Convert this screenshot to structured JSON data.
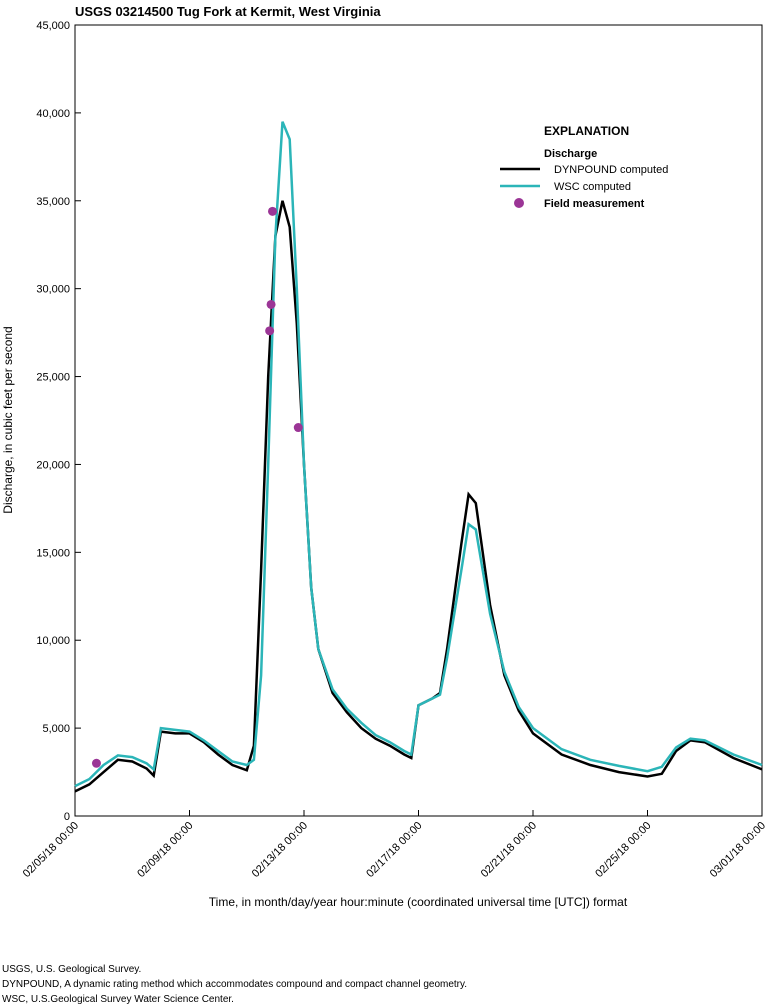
{
  "chart_data": {
    "type": "line",
    "title": "USGS 03214500 Tug Fork at Kermit, West Virginia",
    "y_label": "Discharge, in cubic feet per second",
    "x_label": "Time, in month/day/year hour:minute (coordinated universal time [UTC]) format",
    "legend_title": "EXPLANATION",
    "legend_subtitle": "Discharge",
    "legend_position": "upper right",
    "xlim": [
      "02/05/18 00:00",
      "03/01/18 00:00"
    ],
    "xticks": [
      "02/05/18 00:00",
      "02/09/18 00:00",
      "02/13/18 00:00",
      "02/17/18 00:00",
      "02/21/18 00:00",
      "02/25/18 00:00",
      "03/01/18 00:00"
    ],
    "ylim": [
      0,
      45000
    ],
    "yticks": [
      0,
      {
        "value": 5000,
        "label": "5,000"
      },
      {
        "value": 10000,
        "label": "10,000"
      },
      {
        "value": 15000,
        "label": "15,000"
      },
      {
        "value": 20000,
        "label": "20,000"
      },
      {
        "value": 25000,
        "label": "25,000"
      },
      {
        "value": 30000,
        "label": "30,000"
      },
      {
        "value": 35000,
        "label": "35,000"
      },
      {
        "value": 40000,
        "label": "40,000"
      },
      {
        "value": 45000,
        "label": "45,000"
      }
    ],
    "x": [
      "02/05/18 00:00",
      "02/05/18 12:00",
      "02/06/18 00:00",
      "02/06/18 12:00",
      "02/07/18 00:00",
      "02/07/18 12:00",
      "02/07/18 18:00",
      "02/08/18 00:00",
      "02/08/18 12:00",
      "02/09/18 00:00",
      "02/09/18 12:00",
      "02/10/18 00:00",
      "02/10/18 12:00",
      "02/11/18 00:00",
      "02/11/18 06:00",
      "02/11/18 12:00",
      "02/11/18 18:00",
      "02/12/18 00:00",
      "02/12/18 06:00",
      "02/12/18 12:00",
      "02/12/18 18:00",
      "02/13/18 00:00",
      "02/13/18 06:00",
      "02/13/18 12:00",
      "02/14/18 00:00",
      "02/14/18 12:00",
      "02/15/18 00:00",
      "02/15/18 12:00",
      "02/16/18 00:00",
      "02/16/18 12:00",
      "02/16/18 18:00",
      "02/17/18 00:00",
      "02/17/18 12:00",
      "02/17/18 18:00",
      "02/18/18 00:00",
      "02/18/18 12:00",
      "02/18/18 18:00",
      "02/19/18 00:00",
      "02/19/18 12:00",
      "02/20/18 00:00",
      "02/20/18 12:00",
      "02/21/18 00:00",
      "02/22/18 00:00",
      "02/23/18 00:00",
      "02/24/18 00:00",
      "02/25/18 00:00",
      "02/25/18 12:00",
      "02/26/18 00:00",
      "02/26/18 12:00",
      "02/27/18 00:00",
      "02/28/18 00:00",
      "03/01/18 00:00"
    ],
    "series": [
      {
        "name": "DYNPOUND computed",
        "color": "#000000",
        "values": [
          1400,
          1800,
          2500,
          3200,
          3100,
          2700,
          2300,
          4800,
          4700,
          4700,
          4200,
          3500,
          2900,
          2600,
          4000,
          14000,
          25000,
          33000,
          35000,
          33500,
          28000,
          20000,
          13000,
          9500,
          7000,
          5900,
          5000,
          4400,
          4000,
          3500,
          3300,
          6300,
          6700,
          7000,
          9500,
          15500,
          18300,
          17800,
          12000,
          8000,
          6000,
          4700,
          3500,
          2900,
          2500,
          2250,
          2400,
          3700,
          4300,
          4200,
          3300,
          2650
        ]
      },
      {
        "name": "WSC computed",
        "color": "#2bb5b8",
        "values": [
          1700,
          2100,
          2900,
          3450,
          3350,
          3000,
          2650,
          5000,
          4900,
          4800,
          4300,
          3700,
          3100,
          2900,
          3200,
          8000,
          20000,
          33000,
          39500,
          38500,
          30000,
          20000,
          13000,
          9500,
          7200,
          6100,
          5300,
          4600,
          4200,
          3700,
          3500,
          6300,
          6700,
          6900,
          9000,
          14000,
          16600,
          16300,
          11500,
          8200,
          6200,
          5000,
          3800,
          3200,
          2850,
          2550,
          2800,
          3900,
          4400,
          4300,
          3500,
          2900
        ]
      },
      {
        "name": "Field measurement",
        "type": "scatter",
        "color": "#9b3596",
        "x": [
          "02/05/18 18:00",
          "02/11/18 19:12",
          "02/11/18 20:24",
          "02/11/18 21:36",
          "02/12/18 19:12"
        ],
        "values": [
          3000,
          27600,
          29100,
          34400,
          22100
        ]
      }
    ],
    "notes": [
      "USGS, U.S. Geological Survey.",
      "DYNPOUND, A dynamic rating method which accommodates compound and compact channel geometry.",
      "WSC, U.S.Geological Survey Water Science Center."
    ]
  }
}
